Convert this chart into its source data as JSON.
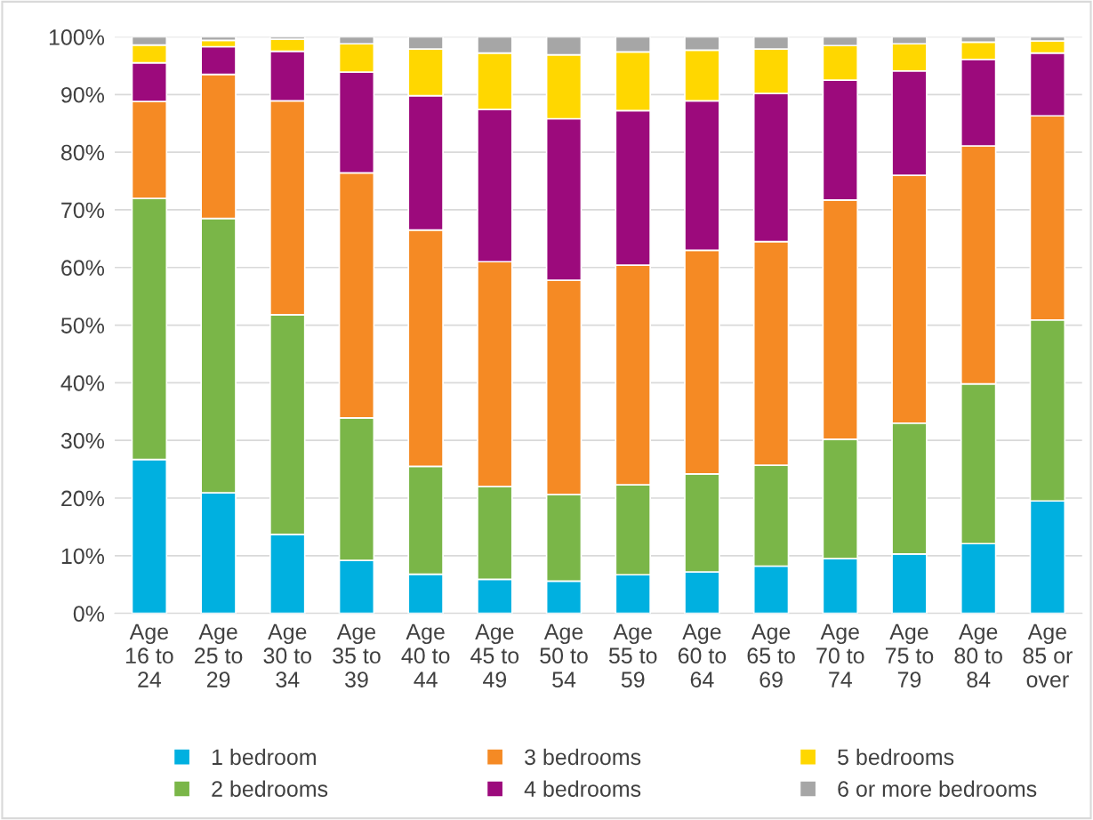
{
  "chart_data": {
    "type": "bar",
    "stacked": true,
    "categories": [
      "Age\n16 to\n24",
      "Age\n25 to\n29",
      "Age\n30 to\n34",
      "Age\n35 to\n39",
      "Age\n40 to\n44",
      "Age\n45 to\n49",
      "Age\n50 to\n54",
      "Age\n55 to\n59",
      "Age\n60 to\n64",
      "Age\n65 to\n69",
      "Age\n70 to\n74",
      "Age\n75 to\n79",
      "Age\n80 to\n84",
      "Age\n85 or\nover"
    ],
    "series": [
      {
        "name": "1 bedroom",
        "color": "#00b0e0",
        "values": [
          26.7,
          20.9,
          13.7,
          9.2,
          6.8,
          5.9,
          5.6,
          6.7,
          7.2,
          8.2,
          9.5,
          10.3,
          12.1,
          19.5
        ]
      },
      {
        "name": "2 bedrooms",
        "color": "#7ab648",
        "values": [
          45.3,
          47.6,
          38.1,
          24.7,
          18.7,
          16.1,
          15.0,
          15.6,
          17.0,
          17.5,
          20.7,
          22.7,
          27.7,
          31.4
        ]
      },
      {
        "name": "3 bedrooms",
        "color": "#f58a24",
        "values": [
          16.8,
          25.0,
          37.1,
          42.5,
          41.0,
          39.0,
          37.2,
          38.1,
          38.8,
          38.8,
          41.5,
          43.0,
          41.3,
          35.4
        ]
      },
      {
        "name": "4 bedrooms",
        "color": "#9c0a7c",
        "values": [
          6.7,
          4.8,
          8.6,
          17.5,
          23.3,
          26.4,
          28.0,
          26.8,
          25.9,
          25.7,
          20.8,
          18.1,
          15.0,
          10.9
        ]
      },
      {
        "name": "5 bedrooms",
        "color": "#ffd700",
        "values": [
          3.1,
          1.1,
          2.1,
          4.9,
          8.1,
          9.8,
          11.1,
          10.2,
          8.8,
          7.7,
          6.0,
          4.7,
          3.0,
          2.1
        ]
      },
      {
        "name": "6 or more bedrooms",
        "color": "#a6a6a6",
        "values": [
          1.4,
          0.6,
          0.4,
          1.2,
          2.1,
          2.8,
          3.1,
          2.6,
          2.3,
          2.1,
          1.5,
          1.2,
          0.9,
          0.7
        ]
      }
    ],
    "ylim": [
      0,
      100
    ],
    "yticks": [
      {
        "value": 0,
        "label": "0%"
      },
      {
        "value": 10,
        "label": "10%"
      },
      {
        "value": 20,
        "label": "20%"
      },
      {
        "value": 30,
        "label": "30%"
      },
      {
        "value": 40,
        "label": "40%"
      },
      {
        "value": 50,
        "label": "50%"
      },
      {
        "value": 60,
        "label": "60%"
      },
      {
        "value": 70,
        "label": "70%"
      },
      {
        "value": 80,
        "label": "80%"
      },
      {
        "value": 90,
        "label": "90%"
      },
      {
        "value": 100,
        "label": "100%"
      }
    ],
    "grid": "y",
    "legend": "bottom",
    "marker": "square"
  }
}
